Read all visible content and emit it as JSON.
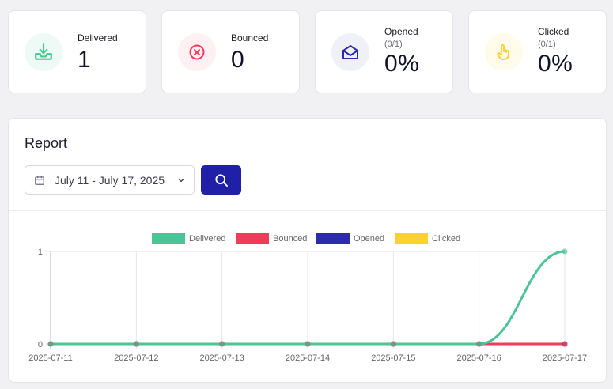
{
  "stats": {
    "delivered": {
      "label": "Delivered",
      "value": "1",
      "icon": "inbox-download-icon",
      "color": "#4cc495",
      "bg": "#eefaf5"
    },
    "bounced": {
      "label": "Bounced",
      "value": "0",
      "icon": "x-circle-icon",
      "color": "#f23a5a",
      "bg": "#fff0f3"
    },
    "opened": {
      "label": "Opened",
      "sub": "(0/1)",
      "value": "0%",
      "icon": "envelope-open-icon",
      "color": "#2c2cab",
      "bg": "#f0f0f8"
    },
    "clicked": {
      "label": "Clicked",
      "sub": "(0/1)",
      "value": "0%",
      "icon": "hand-pointer-icon",
      "color": "#fdd22d",
      "bg": "#fffbea"
    }
  },
  "report": {
    "title": "Report",
    "date_range": "July 11 - July 17, 2025"
  },
  "chart_data": {
    "type": "line",
    "x": [
      "2025-07-11",
      "2025-07-12",
      "2025-07-13",
      "2025-07-14",
      "2025-07-15",
      "2025-07-16",
      "2025-07-17"
    ],
    "series": [
      {
        "name": "Delivered",
        "color": "#4cc495",
        "values": [
          0,
          0,
          0,
          0,
          0,
          0,
          1
        ]
      },
      {
        "name": "Bounced",
        "color": "#f23a5a",
        "values": [
          0,
          0,
          0,
          0,
          0,
          0,
          0
        ]
      },
      {
        "name": "Opened",
        "color": "#2c2cab",
        "values": [
          0,
          0,
          0,
          0,
          0,
          0,
          0
        ]
      },
      {
        "name": "Clicked",
        "color": "#fdd22d",
        "values": [
          0,
          0,
          0,
          0,
          0,
          0,
          0
        ]
      }
    ],
    "yticks": [
      "0",
      "1"
    ],
    "ylim": [
      0,
      1
    ],
    "legend": "top-center",
    "grid": true
  }
}
